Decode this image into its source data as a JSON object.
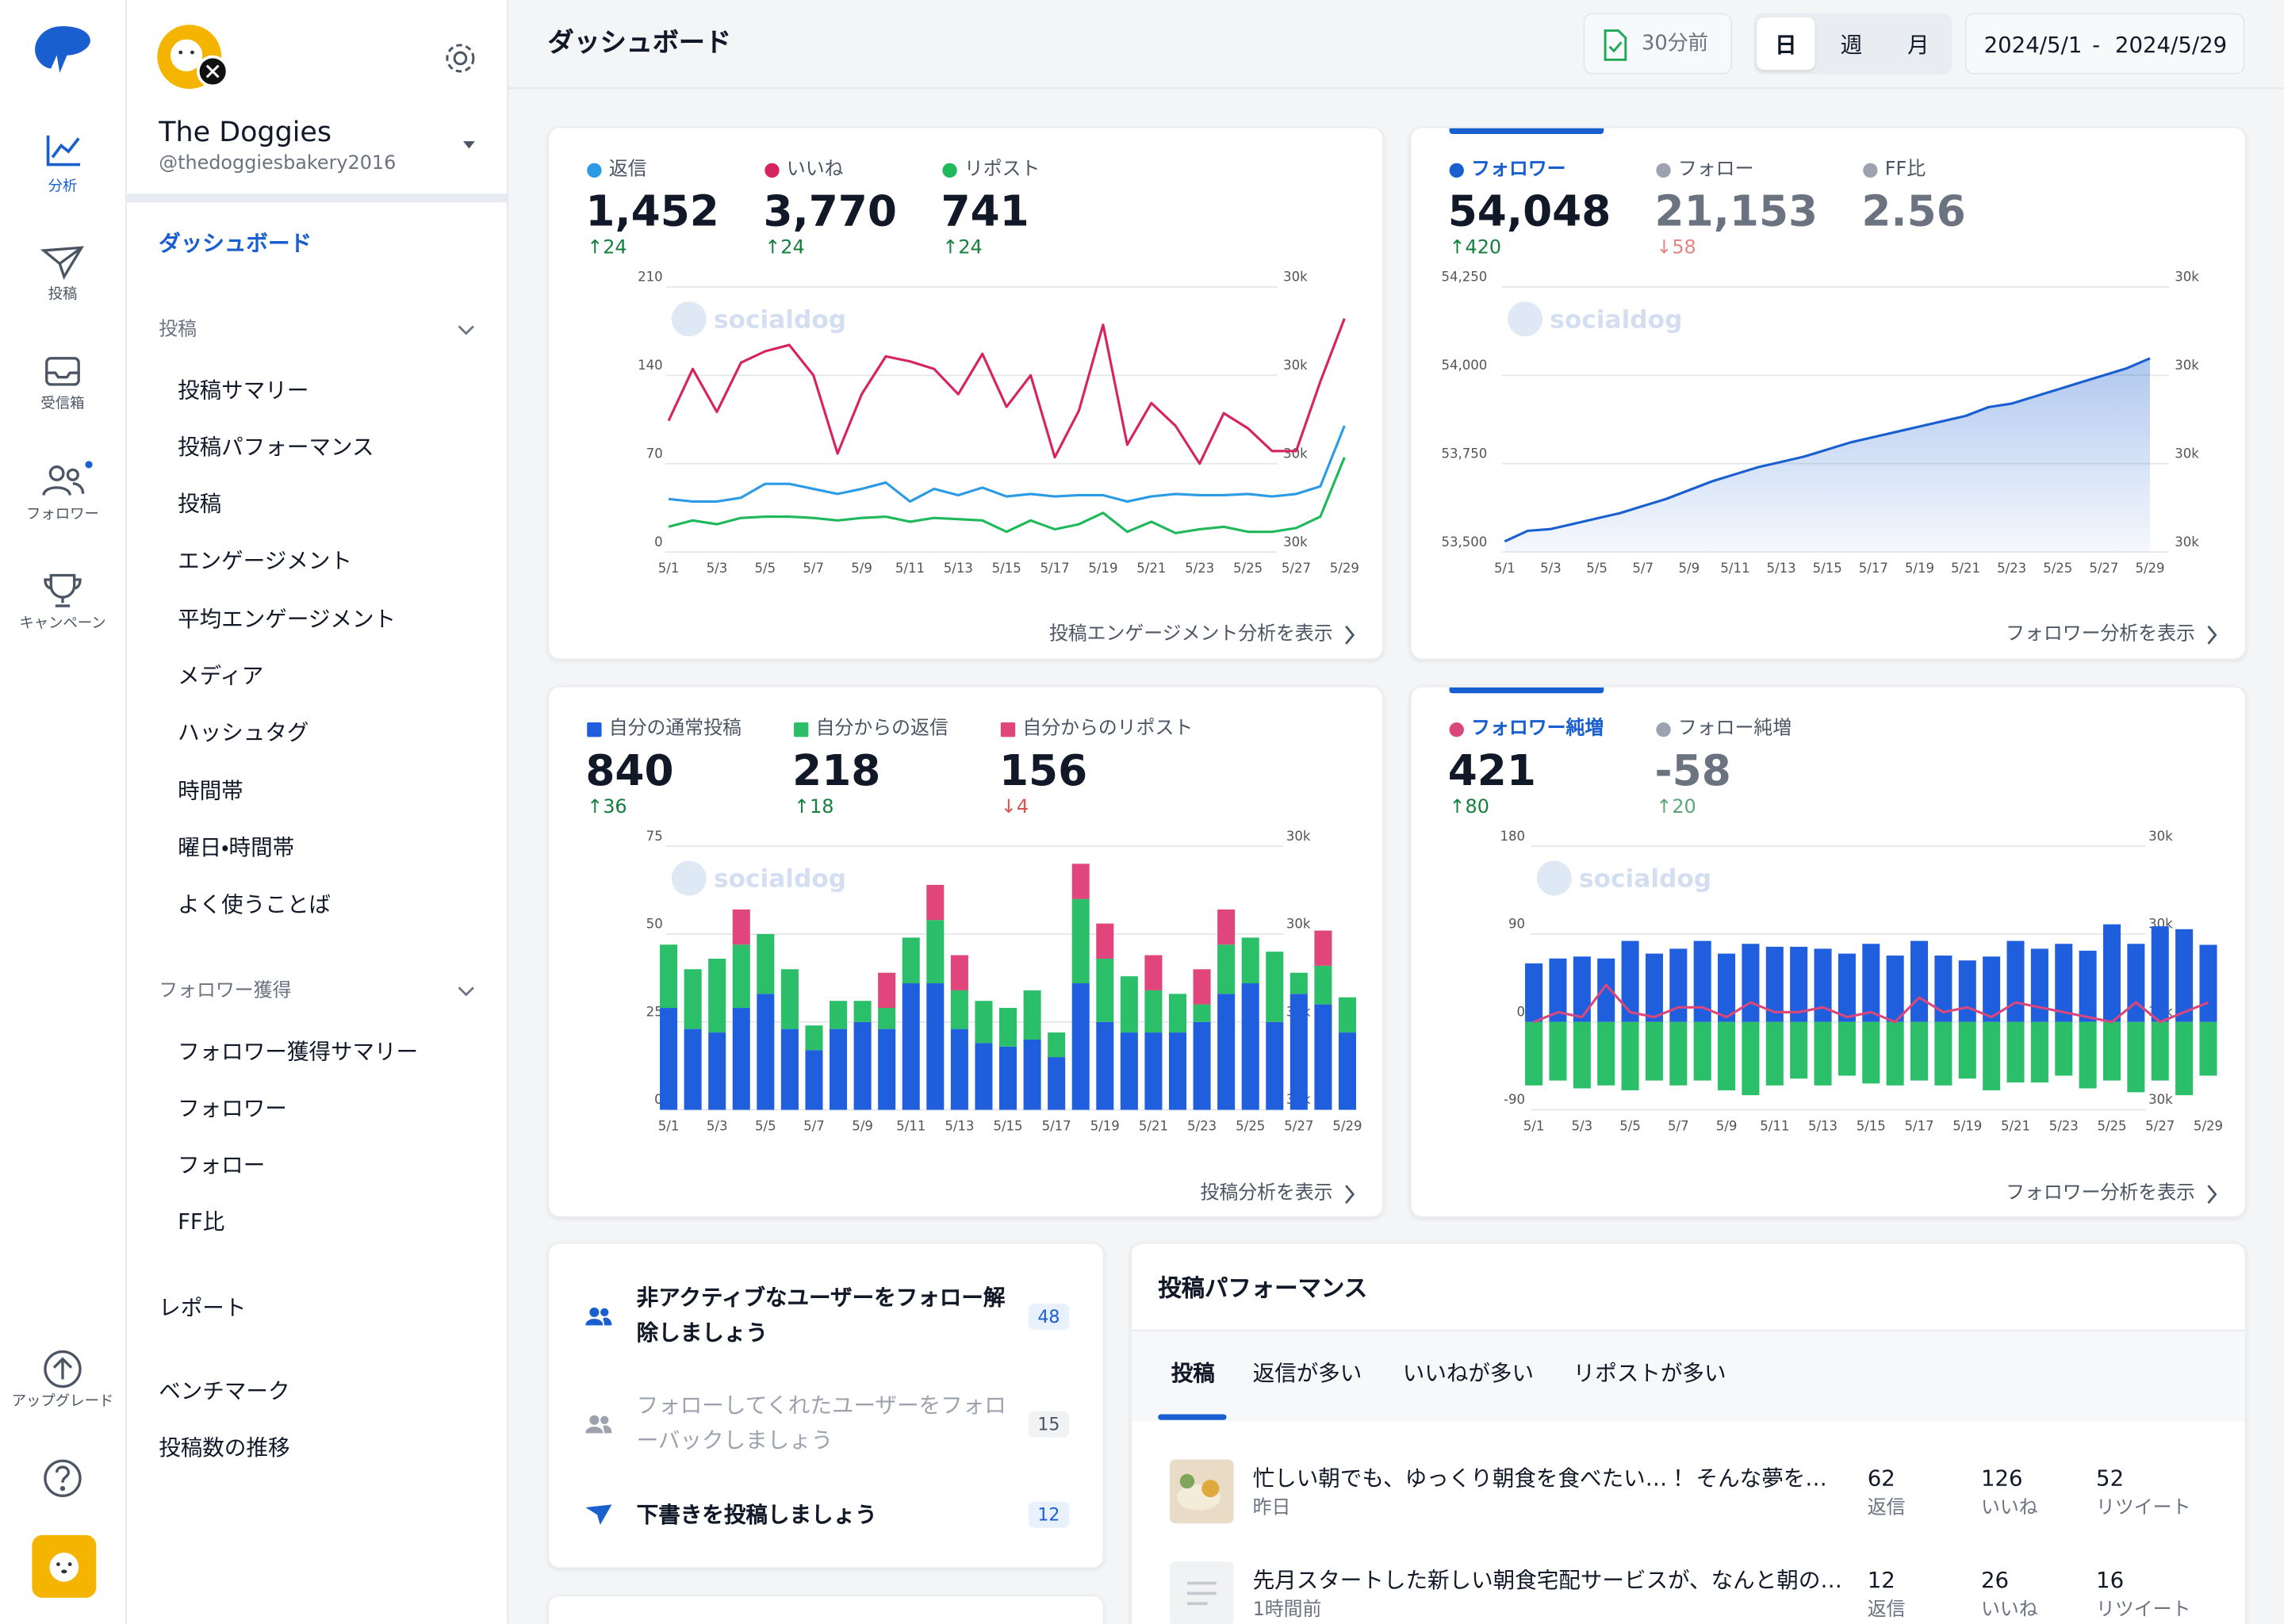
{
  "sidebar": {
    "items": [
      "分析",
      "投稿",
      "受信箱",
      "フォロワー",
      "キャンペーン"
    ],
    "upgrade": "アップグレード"
  },
  "profile": {
    "name": "The Doggies",
    "handle": "@thedoggiesbakery2016"
  },
  "nav": {
    "dashboard": "ダッシュボード",
    "sections": [
      {
        "title": "投稿",
        "items": [
          "投稿サマリー",
          "投稿パフォーマンス",
          "投稿",
          "エンゲージメント",
          "平均エンゲージメント",
          "メディア",
          "ハッシュタグ",
          "時間帯",
          "曜日・時間帯",
          "よく使うことば"
        ]
      },
      {
        "title": "フォロワー獲得",
        "items": [
          "フォロワー獲得サマリー",
          "フォロワー",
          "フォロー",
          "FF比"
        ]
      }
    ],
    "extra": [
      "レポート",
      "ベンチマーク",
      "投稿数の推移"
    ]
  },
  "header": {
    "title": "ダッシュボード",
    "updated": "30分前",
    "periods": [
      "日",
      "週",
      "月"
    ],
    "active_period": 0,
    "date_from": "2024/5/1",
    "date_sep": "-",
    "date_to": "2024/5/29"
  },
  "watermark": "socialdog",
  "cards": [
    {
      "accent": false,
      "legend_marker": "circle",
      "stats": [
        {
          "label": "返信",
          "value": "1,452",
          "delta": "↑24",
          "trend": "up",
          "color": "#2b9be6"
        },
        {
          "label": "いいね",
          "value": "3,770",
          "delta": "↑24",
          "trend": "up",
          "color": "#d6245f"
        },
        {
          "label": "リポスト",
          "value": "741",
          "delta": "↑24",
          "trend": "up",
          "color": "#1fb85a"
        }
      ],
      "link": "投稿エンゲージメント分析を表示",
      "chart": {
        "type": "line",
        "grid": true,
        "categories": [
          "5/1",
          null,
          "5/3",
          null,
          "5/5",
          null,
          "5/7",
          null,
          "5/9",
          null,
          "5/11",
          null,
          "5/13",
          null,
          "5/15",
          null,
          "5/17",
          null,
          "5/19",
          null,
          "5/21",
          null,
          "5/23",
          null,
          "5/25",
          null,
          "5/27",
          null,
          "5/29"
        ],
        "ylim": [
          0,
          210
        ],
        "yticks": [
          0,
          70,
          140,
          210
        ],
        "y2_labels": [
          "30k",
          "30k",
          "30k",
          "30k"
        ],
        "series": [
          {
            "color": "#2b9be6",
            "values": [
              42,
              40,
              40,
              43,
              54,
              54,
              50,
              46,
              50,
              55,
              40,
              50,
              45,
              51,
              44,
              46,
              44,
              45,
              45,
              40,
              44,
              46,
              45,
              45,
              46,
              44,
              46,
              52,
              100
            ]
          },
          {
            "color": "#d6245f",
            "values": [
              104,
              145,
              111,
              150,
              159,
              164,
              140,
              78,
              125,
              155,
              151,
              145,
              125,
              157,
              115,
              140,
              75,
              112,
              180,
              85,
              118,
              100,
              70,
              110,
              98,
              80,
              80,
              135,
              185
            ]
          },
          {
            "color": "#1fb85a",
            "values": [
              20,
              25,
              22,
              27,
              28,
              28,
              27,
              25,
              27,
              28,
              24,
              27,
              26,
              25,
              16,
              25,
              18,
              22,
              31,
              16,
              24,
              15,
              18,
              20,
              16,
              16,
              19,
              28,
              75
            ]
          }
        ]
      }
    },
    {
      "accent": true,
      "legend_marker": "circle",
      "stats": [
        {
          "label": "フォロワー",
          "value": "54,048",
          "delta": "↑420",
          "trend": "up",
          "color": "#1a5fd0",
          "active": true
        },
        {
          "label": "フォロー",
          "value": "21,153",
          "delta": "↓58",
          "trend": "down",
          "color": "#9ca3af",
          "muted": true
        },
        {
          "label": "FF比",
          "value": "2.56",
          "color": "#9ca3af",
          "muted": true
        }
      ],
      "link": "フォロワー分析を表示",
      "chart": {
        "type": "area",
        "grid": true,
        "categories": [
          "5/1",
          null,
          "5/3",
          null,
          "5/5",
          null,
          "5/7",
          null,
          "5/9",
          null,
          "5/11",
          null,
          "5/13",
          null,
          "5/15",
          null,
          "5/17",
          null,
          "5/19",
          null,
          "5/21",
          null,
          "5/23",
          null,
          "5/25",
          null,
          "5/27",
          null,
          "5/29"
        ],
        "ylim": [
          53500,
          54250
        ],
        "yticks": [
          {
            "value": 53500,
            "label": "53,500"
          },
          {
            "value": 53750,
            "label": "53,750"
          },
          {
            "value": 54000,
            "label": "54,000"
          },
          {
            "value": 54250,
            "label": "54,250"
          }
        ],
        "y2_labels": [
          "30k",
          "30k",
          "30k",
          "30k"
        ],
        "series": [
          {
            "color": "#1a5fd0",
            "values": [
              53530,
              53560,
              53565,
              53580,
              53595,
              53610,
              53630,
              53650,
              53675,
              53700,
              53720,
              53740,
              53755,
              53770,
              53790,
              53810,
              53825,
              53840,
              53855,
              53870,
              53885,
              53910,
              53920,
              53940,
              53960,
              53980,
              54000,
              54020,
              54048
            ]
          }
        ]
      }
    },
    {
      "accent": false,
      "legend_marker": "square",
      "stats": [
        {
          "label": "自分の通常投稿",
          "value": "840",
          "delta": "↑36",
          "trend": "up",
          "color": "#1f5fde"
        },
        {
          "label": "自分からの返信",
          "value": "218",
          "delta": "↑18",
          "trend": "up",
          "color": "#2bbf6a"
        },
        {
          "label": "自分からのリポスト",
          "value": "156",
          "delta": "↓4",
          "trend": "down",
          "color": "#e0457b"
        }
      ],
      "link": "投稿分析を表示",
      "chart": {
        "type": "bar",
        "grid": true,
        "categories": [
          "5/1",
          null,
          "5/3",
          null,
          "5/5",
          null,
          "5/7",
          null,
          "5/9",
          null,
          "5/11",
          null,
          "5/13",
          null,
          "5/15",
          null,
          "5/17",
          null,
          "5/19",
          null,
          "5/21",
          null,
          "5/23",
          null,
          "5/25",
          null,
          "5/27",
          null,
          "5/29"
        ],
        "ylim": [
          0,
          75
        ],
        "yticks": [
          0,
          25,
          50,
          75
        ],
        "y2_labels": [
          "30k",
          "30k",
          "30k",
          "30k"
        ],
        "series": [
          {
            "color": "#1f5fde",
            "values": [
              29,
              23,
              22,
              29,
              33,
              23,
              17,
              23,
              25,
              23,
              36,
              36,
              23,
              19,
              18,
              20,
              15,
              36,
              25,
              22,
              22,
              22,
              25,
              33,
              36,
              25,
              33,
              30,
              22
            ]
          },
          {
            "color": "#2bbf6a",
            "values": [
              18,
              17,
              21,
              18,
              17,
              17,
              7,
              8,
              6,
              6,
              13,
              18,
              11,
              12,
              11,
              14,
              7,
              24,
              18,
              16,
              12,
              11,
              5,
              14,
              13,
              20,
              6,
              11,
              10
            ]
          },
          {
            "color": "#e0457b",
            "values": [
              0,
              0,
              0,
              10,
              0,
              0,
              0,
              0,
              0,
              10,
              0,
              10,
              10,
              0,
              0,
              0,
              0,
              10,
              10,
              0,
              10,
              0,
              10,
              10,
              0,
              0,
              0,
              10,
              0
            ]
          }
        ]
      }
    },
    {
      "accent": true,
      "legend_marker": "circle",
      "stats": [
        {
          "label": "フォロワー純増",
          "value": "421",
          "delta": "↑80",
          "trend": "up",
          "color": "#d9477b",
          "active": true
        },
        {
          "label": "フォロー純増",
          "value": "-58",
          "delta": "↑20",
          "trend": "up",
          "color": "#9ca3af",
          "muted": true
        }
      ],
      "link": "フォロワー分析を表示",
      "chart": {
        "type": "bar",
        "grid": true,
        "categories": [
          "5/1",
          null,
          "5/3",
          null,
          "5/5",
          null,
          "5/7",
          null,
          "5/9",
          null,
          "5/11",
          null,
          "5/13",
          null,
          "5/15",
          null,
          "5/17",
          null,
          "5/19",
          null,
          "5/21",
          null,
          "5/23",
          null,
          "5/25",
          null,
          "5/27",
          null,
          "5/29"
        ],
        "ylim": [
          -90,
          180
        ],
        "yticks": [
          -90,
          0,
          90,
          180
        ],
        "y2_labels": [
          "30k",
          "30k",
          "30k",
          "30k"
        ],
        "series": [
          {
            "color": "#1f5fde",
            "values": [
              60,
              65,
              67,
              65,
              83,
              70,
              75,
              83,
              70,
              80,
              77,
              77,
              75,
              70,
              80,
              68,
              83,
              68,
              63,
              67,
              83,
              75,
              80,
              73,
              100,
              80,
              98,
              95,
              79
            ]
          },
          {
            "color": "#2bbf6a",
            "values": [
              -65,
              -60,
              -68,
              -65,
              -70,
              -60,
              -65,
              -60,
              -70,
              -75,
              -65,
              -58,
              -65,
              -55,
              -63,
              -65,
              -60,
              -65,
              -58,
              -70,
              -62,
              -62,
              -55,
              -68,
              -60,
              -72,
              -60,
              -75,
              -55
            ]
          },
          {
            "color": "#d9477b",
            "mark": "line",
            "values": [
              0,
              10,
              5,
              38,
              10,
              5,
              15,
              15,
              5,
              20,
              10,
              10,
              15,
              5,
              10,
              0,
              25,
              10,
              15,
              5,
              20,
              15,
              10,
              5,
              0,
              20,
              0,
              10,
              20
            ]
          }
        ]
      }
    }
  ],
  "tasks": [
    {
      "text": "非アクティブなユーザーをフォロー解除しましょう",
      "count": "48",
      "icon": "users",
      "active": true
    },
    {
      "text": "フォローしてくれたユーザーをフォローバックしましょう",
      "count": "15",
      "icon": "users",
      "active": false
    },
    {
      "text": "下書きを投稿しましょう",
      "count": "12",
      "icon": "send",
      "active": true
    }
  ],
  "performance": {
    "title": "投稿パフォーマンス",
    "tabs": [
      "投稿",
      "返信が多い",
      "いいねが多い",
      "リポストが多い"
    ],
    "active_tab": 0,
    "rows": [
      {
        "has_image": true,
        "text": "忙しい朝でも、ゆっくり朝食を食べたい…！ そんな夢を…",
        "time": "昨日",
        "stats": [
          {
            "value": "62",
            "label": "返信"
          },
          {
            "value": "126",
            "label": "いいね"
          },
          {
            "value": "52",
            "label": "リツイート"
          }
        ]
      },
      {
        "has_image": false,
        "text": "先月スタートした新しい朝食宅配サービスが、なんと朝の…",
        "time": "1時間前",
        "stats": [
          {
            "value": "12",
            "label": "返信"
          },
          {
            "value": "26",
            "label": "いいね"
          },
          {
            "value": "16",
            "label": "リツイート"
          }
        ]
      }
    ]
  }
}
